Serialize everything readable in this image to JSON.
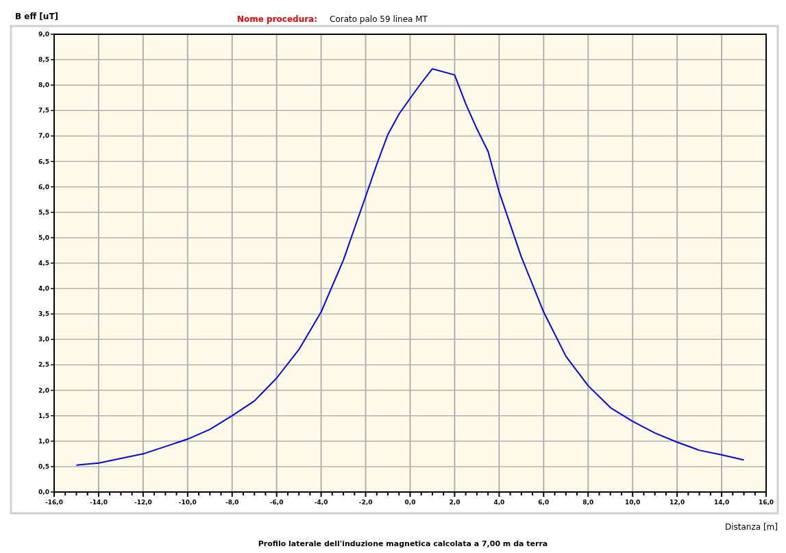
{
  "chart_data": {
    "type": "line",
    "title": "Nome procedura:",
    "subtitle": "Corato palo 59 linea MT",
    "ylabel": "B eff [uT]",
    "xlabel": "Distanza [m]",
    "annotations": [
      "Profilo laterale dell'induzione magnetica calcolata a 7,00 m da terra"
    ],
    "x": [
      -15,
      -14,
      -12,
      -10,
      -9,
      -8,
      -7,
      -6,
      -5,
      -4,
      -3,
      -2,
      -1.5,
      -1,
      -0.5,
      0,
      0.5,
      1,
      2,
      2.5,
      3,
      3.5,
      4,
      5,
      6,
      7,
      8,
      9,
      10,
      11,
      12,
      13,
      14,
      15
    ],
    "series": [
      {
        "color": "#0000ff",
        "values": [
          0.53,
          0.57,
          0.75,
          1.04,
          1.23,
          1.5,
          1.79,
          2.24,
          2.8,
          3.54,
          4.56,
          5.81,
          6.44,
          7.03,
          7.43,
          7.74,
          8.04,
          8.32,
          8.2,
          7.63,
          7.14,
          6.7,
          5.9,
          4.62,
          3.54,
          2.67,
          2.09,
          1.66,
          1.39,
          1.16,
          0.98,
          0.82,
          0.73,
          0.63
        ]
      }
    ],
    "xlim": [
      -16,
      16
    ],
    "xticks": [
      {
        "value": -16,
        "label": "-16,0"
      },
      {
        "value": -15.5,
        "label": null
      },
      {
        "value": -15,
        "label": null
      },
      {
        "value": -14.5,
        "label": null
      },
      {
        "value": -14,
        "label": "-14,0"
      },
      {
        "value": -13.5,
        "label": null
      },
      {
        "value": -13,
        "label": null
      },
      {
        "value": -12.5,
        "label": null
      },
      {
        "value": -12,
        "label": "-12,0"
      },
      {
        "value": -11.5,
        "label": null
      },
      {
        "value": -11,
        "label": null
      },
      {
        "value": -10.5,
        "label": null
      },
      {
        "value": -10,
        "label": "-10,0"
      },
      {
        "value": -9.5,
        "label": null
      },
      {
        "value": -9,
        "label": null
      },
      {
        "value": -8.5,
        "label": null
      },
      {
        "value": -8,
        "label": "-8,0"
      },
      {
        "value": -7.5,
        "label": null
      },
      {
        "value": -7,
        "label": null
      },
      {
        "value": -6.5,
        "label": null
      },
      {
        "value": -6,
        "label": "-6,0"
      },
      {
        "value": -5.5,
        "label": null
      },
      {
        "value": -5,
        "label": null
      },
      {
        "value": -4.5,
        "label": null
      },
      {
        "value": -4,
        "label": "-4,0"
      },
      {
        "value": -3.5,
        "label": null
      },
      {
        "value": -3,
        "label": null
      },
      {
        "value": -2.5,
        "label": null
      },
      {
        "value": -2,
        "label": "-2,0"
      },
      {
        "value": -1.5,
        "label": null
      },
      {
        "value": -1,
        "label": null
      },
      {
        "value": -0.5,
        "label": null
      },
      {
        "value": 0,
        "label": "0,0"
      },
      {
        "value": 0.5,
        "label": null
      },
      {
        "value": 1,
        "label": null
      },
      {
        "value": 1.5,
        "label": null
      },
      {
        "value": 2,
        "label": "2,0"
      },
      {
        "value": 2.5,
        "label": null
      },
      {
        "value": 3,
        "label": null
      },
      {
        "value": 3.5,
        "label": null
      },
      {
        "value": 4,
        "label": "4,0"
      },
      {
        "value": 4.5,
        "label": null
      },
      {
        "value": 5,
        "label": null
      },
      {
        "value": 5.5,
        "label": null
      },
      {
        "value": 6,
        "label": "6,0"
      },
      {
        "value": 6.5,
        "label": null
      },
      {
        "value": 7,
        "label": null
      },
      {
        "value": 7.5,
        "label": null
      },
      {
        "value": 8,
        "label": "8,0"
      },
      {
        "value": 8.5,
        "label": null
      },
      {
        "value": 9,
        "label": null
      },
      {
        "value": 9.5,
        "label": null
      },
      {
        "value": 10,
        "label": "10,0"
      },
      {
        "value": 10.5,
        "label": null
      },
      {
        "value": 11,
        "label": null
      },
      {
        "value": 11.5,
        "label": null
      },
      {
        "value": 12,
        "label": "12,0"
      },
      {
        "value": 12.5,
        "label": null
      },
      {
        "value": 13,
        "label": null
      },
      {
        "value": 13.5,
        "label": null
      },
      {
        "value": 14,
        "label": "14,0"
      },
      {
        "value": 14.5,
        "label": null
      },
      {
        "value": 15,
        "label": null
      },
      {
        "value": 15.5,
        "label": null
      },
      {
        "value": 16,
        "label": "16,0"
      }
    ],
    "ylim": [
      0,
      9
    ],
    "yticks": [
      {
        "value": 0,
        "label": "0,0"
      },
      {
        "value": 0.5,
        "label": "0,5"
      },
      {
        "value": 1,
        "label": "1,0"
      },
      {
        "value": 1.5,
        "label": "1,5"
      },
      {
        "value": 2,
        "label": "2,0"
      },
      {
        "value": 2.5,
        "label": "2,5"
      },
      {
        "value": 3,
        "label": "3,0"
      },
      {
        "value": 3.5,
        "label": "3,5"
      },
      {
        "value": 4,
        "label": "4,0"
      },
      {
        "value": 4.5,
        "label": "4,5"
      },
      {
        "value": 5,
        "label": "5,0"
      },
      {
        "value": 5.5,
        "label": "5,5"
      },
      {
        "value": 6,
        "label": "6,0"
      },
      {
        "value": 6.5,
        "label": "6,5"
      },
      {
        "value": 7,
        "label": "7,0"
      },
      {
        "value": 7.5,
        "label": "7,5"
      },
      {
        "value": 8,
        "label": "8,0"
      },
      {
        "value": 8.5,
        "label": "8,5"
      },
      {
        "value": 9,
        "label": "9,0"
      }
    ],
    "grid": true,
    "marker": "none",
    "line_style": "solid"
  }
}
